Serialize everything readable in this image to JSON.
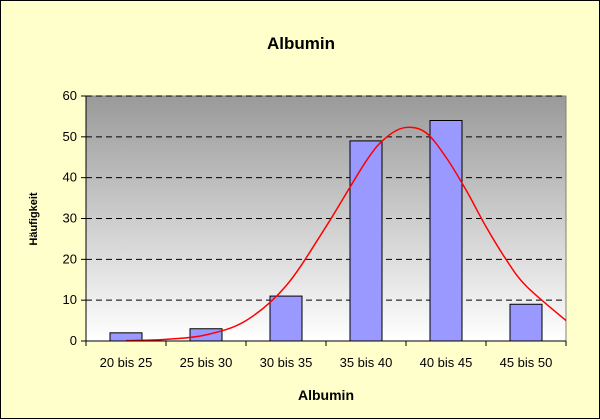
{
  "chart_data": {
    "type": "bar",
    "title": "Albumin",
    "xlabel": "Albumin",
    "ylabel": "Häufigkeit",
    "categories": [
      "20 bis 25",
      "25 bis 30",
      "30 bis 35",
      "35 bis 40",
      "40 bis 45",
      "45 bis 50"
    ],
    "values": [
      2,
      3,
      11,
      49,
      54,
      9
    ],
    "ylim": [
      0,
      60
    ],
    "yticks": [
      0,
      10,
      20,
      30,
      40,
      50,
      60
    ],
    "grid": true,
    "legend": "none",
    "fitted_curve": {
      "type": "line",
      "x_category_index": [
        0,
        0.5,
        1,
        1.5,
        2,
        2.5,
        3,
        3.25,
        3.5,
        3.75,
        4,
        4.25,
        4.5,
        4.75,
        5,
        5.5
      ],
      "values": [
        0.1,
        0.4,
        1.5,
        5,
        13.5,
        28,
        44,
        49.8,
        52.3,
        51,
        45,
        37,
        28,
        20,
        13.5,
        5
      ]
    },
    "colors": {
      "bar_fill": "#9999ff",
      "bar_stroke": "#000000",
      "curve": "#ff0000",
      "plot_top": "#9a9a9a",
      "plot_bottom": "#ffffff",
      "background": "#ffffcc"
    }
  }
}
